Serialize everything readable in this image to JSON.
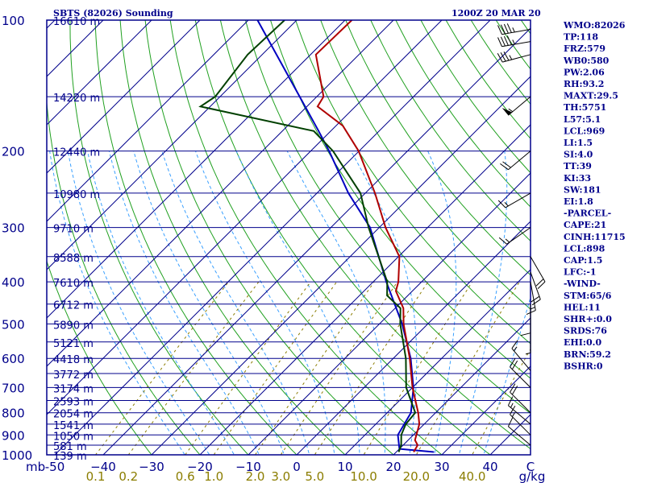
{
  "header": {
    "station": "SBTS (82026) Sounding",
    "time": "1200Z 20 MAR 20"
  },
  "colors": {
    "frame": "#00008b",
    "isotherm": "#00008b",
    "dry_adiabat": "#20a020",
    "moist_adiabat": "#3aa0ff",
    "mixing_ratio": "#8b7d00",
    "temperature": "#b00000",
    "dewpoint": "#004000",
    "parcel": "#0000c0",
    "wind": "#000000"
  },
  "axes": {
    "pressure_unit": "mb",
    "pressure_ticks": [
      {
        "p": 100,
        "label": "100"
      },
      {
        "p": 200,
        "label": "200"
      },
      {
        "p": 300,
        "label": "300"
      },
      {
        "p": 400,
        "label": "400"
      },
      {
        "p": 500,
        "label": "500"
      },
      {
        "p": 600,
        "label": "600"
      },
      {
        "p": 700,
        "label": "700"
      },
      {
        "p": 800,
        "label": "800"
      },
      {
        "p": 900,
        "label": "900"
      },
      {
        "p": 1000,
        "label": "1000"
      }
    ],
    "temp_unit": "C",
    "temp_ticks": [
      {
        "t": -50,
        "label": "-50"
      },
      {
        "t": -40,
        "label": "−40"
      },
      {
        "t": -30,
        "label": "−30"
      },
      {
        "t": -20,
        "label": "−20"
      },
      {
        "t": -10,
        "label": "−10"
      },
      {
        "t": 0,
        "label": "0"
      },
      {
        "t": 10,
        "label": "10"
      },
      {
        "t": 20,
        "label": "20"
      },
      {
        "t": 30,
        "label": "30"
      },
      {
        "t": 40,
        "label": "40"
      }
    ],
    "mixing_unit": "g/kg",
    "mixing_ticks": [
      {
        "w": 0.1,
        "label": "0.1"
      },
      {
        "w": 0.2,
        "label": "0.2"
      },
      {
        "w": 0.6,
        "label": "0.6"
      },
      {
        "w": 1.0,
        "label": "1.0"
      },
      {
        "w": 2.0,
        "label": "2.0"
      },
      {
        "w": 3.0,
        "label": "3.0"
      },
      {
        "w": 5.0,
        "label": "5.0"
      },
      {
        "w": 10.0,
        "label": "10.0"
      },
      {
        "w": 20.0,
        "label": "20.0"
      },
      {
        "w": 40.0,
        "label": "40.0"
      }
    ]
  },
  "chart_data": {
    "type": "skew-t",
    "title": "SBTS (82026) Sounding",
    "xlabel": "C",
    "ylabel": "mb",
    "plim": [
      100,
      1000
    ],
    "tlim": [
      -50,
      50
    ],
    "heights": [
      {
        "p": 100,
        "label": "16610 m"
      },
      {
        "p": 150,
        "label": "14220 m"
      },
      {
        "p": 200,
        "label": "12440 m"
      },
      {
        "p": 250,
        "label": "10980 m"
      },
      {
        "p": 300,
        "label": "9710 m"
      },
      {
        "p": 350,
        "label": "8588 m"
      },
      {
        "p": 400,
        "label": "7610 m"
      },
      {
        "p": 450,
        "label": "6712 m"
      },
      {
        "p": 500,
        "label": "5890 m"
      },
      {
        "p": 550,
        "label": "5121 m"
      },
      {
        "p": 600,
        "label": "4418 m"
      },
      {
        "p": 650,
        "label": "3772 m"
      },
      {
        "p": 700,
        "label": "3174 m"
      },
      {
        "p": 750,
        "label": "2593 m"
      },
      {
        "p": 800,
        "label": "2054 m"
      },
      {
        "p": 850,
        "label": "1541 m"
      },
      {
        "p": 900,
        "label": "1050 m"
      },
      {
        "p": 950,
        "label": "581 m"
      },
      {
        "p": 1000,
        "label": "139 m"
      }
    ],
    "temperature": [
      {
        "p": 985,
        "t": 23.6
      },
      {
        "p": 950,
        "t": 23.0
      },
      {
        "p": 925,
        "t": 21.4
      },
      {
        "p": 850,
        "t": 19.0
      },
      {
        "p": 800,
        "t": 16.4
      },
      {
        "p": 700,
        "t": 10.0
      },
      {
        "p": 600,
        "t": 3.4
      },
      {
        "p": 500,
        "t": -5.0
      },
      {
        "p": 460,
        "t": -8.3
      },
      {
        "p": 420,
        "t": -13.4
      },
      {
        "p": 400,
        "t": -14.8
      },
      {
        "p": 350,
        "t": -19.8
      },
      {
        "p": 300,
        "t": -28.7
      },
      {
        "p": 250,
        "t": -38.0
      },
      {
        "p": 200,
        "t": -50.1
      },
      {
        "p": 175,
        "t": -58.6
      },
      {
        "p": 158,
        "t": -67.8
      },
      {
        "p": 150,
        "t": -68.6
      },
      {
        "p": 120,
        "t": -78.9
      },
      {
        "p": 100,
        "t": -78.6
      }
    ],
    "dewpoint": [
      {
        "p": 985,
        "t": 20.5
      },
      {
        "p": 950,
        "t": 19.6
      },
      {
        "p": 900,
        "t": 17.5
      },
      {
        "p": 850,
        "t": 16.2
      },
      {
        "p": 800,
        "t": 15.8
      },
      {
        "p": 700,
        "t": 8.7
      },
      {
        "p": 600,
        "t": 2.6
      },
      {
        "p": 500,
        "t": -5.7
      },
      {
        "p": 460,
        "t": -8.9
      },
      {
        "p": 430,
        "t": -14.3
      },
      {
        "p": 400,
        "t": -17.1
      },
      {
        "p": 300,
        "t": -32.2
      },
      {
        "p": 250,
        "t": -41.0
      },
      {
        "p": 200,
        "t": -55.4
      },
      {
        "p": 180,
        "t": -63.5
      },
      {
        "p": 158,
        "t": -92.0
      },
      {
        "p": 150,
        "t": -91.0
      },
      {
        "p": 120,
        "t": -93.0
      },
      {
        "p": 100,
        "t": -92.5
      }
    ],
    "parcel": [
      {
        "p": 985,
        "t": 27.8
      },
      {
        "p": 969,
        "t": 20.0
      },
      {
        "p": 900,
        "t": 16.8
      },
      {
        "p": 800,
        "t": 14.9
      },
      {
        "p": 700,
        "t": 10.2
      },
      {
        "p": 600,
        "t": 3.6
      },
      {
        "p": 500,
        "t": -5.3
      },
      {
        "p": 400,
        "t": -17.3
      },
      {
        "p": 300,
        "t": -31.9
      },
      {
        "p": 250,
        "t": -43.5
      },
      {
        "p": 200,
        "t": -56.2
      },
      {
        "p": 180,
        "t": -62.5
      },
      {
        "p": 100,
        "t": -98.1
      }
    ],
    "wind_barbs": [
      {
        "p": 105,
        "dir": 260,
        "spd": 45
      },
      {
        "p": 112,
        "dir": 260,
        "spd": 45
      },
      {
        "p": 120,
        "dir": 255,
        "spd": 35
      },
      {
        "p": 150,
        "dir": 230,
        "spd": 55
      },
      {
        "p": 200,
        "dir": 230,
        "spd": 20
      },
      {
        "p": 250,
        "dir": 240,
        "spd": 15
      },
      {
        "p": 300,
        "dir": 235,
        "spd": 15
      },
      {
        "p": 350,
        "dir": 150,
        "spd": 20
      },
      {
        "p": 380,
        "dir": 160,
        "spd": 20
      },
      {
        "p": 400,
        "dir": 170,
        "spd": 15
      },
      {
        "p": 450,
        "dir": 180,
        "spd": 10
      },
      {
        "p": 500,
        "dir": 180,
        "spd": 5
      },
      {
        "p": 640,
        "dir": 320,
        "spd": 15
      },
      {
        "p": 700,
        "dir": 315,
        "spd": 20
      },
      {
        "p": 800,
        "dir": 315,
        "spd": 20
      },
      {
        "p": 850,
        "dir": 310,
        "spd": 15
      },
      {
        "p": 900,
        "dir": 315,
        "spd": 15
      },
      {
        "p": 950,
        "dir": 310,
        "spd": 10
      }
    ]
  },
  "indices": [
    "WMO:82026",
    "TP:118",
    "FRZ:579",
    "WB0:580",
    "PW:2.06",
    "RH:93.2",
    "MAXT:29.5",
    "TH:5751",
    "L57:5.1",
    "LCL:969",
    "LI:1.5",
    "SI:4.0",
    "TT:39",
    "KI:33",
    "SW:181",
    "EI:1.8",
    "-PARCEL-",
    "CAPE:21",
    "CINH:11715",
    "LCL:898",
    "CAP:1.5",
    "LFC:-1",
    "-WIND-",
    "STM:65/6",
    "HEL:11",
    "SHR+:0.0",
    "SRDS:76",
    "EHI:0.0",
    "BRN:59.2",
    "BSHR:0"
  ]
}
